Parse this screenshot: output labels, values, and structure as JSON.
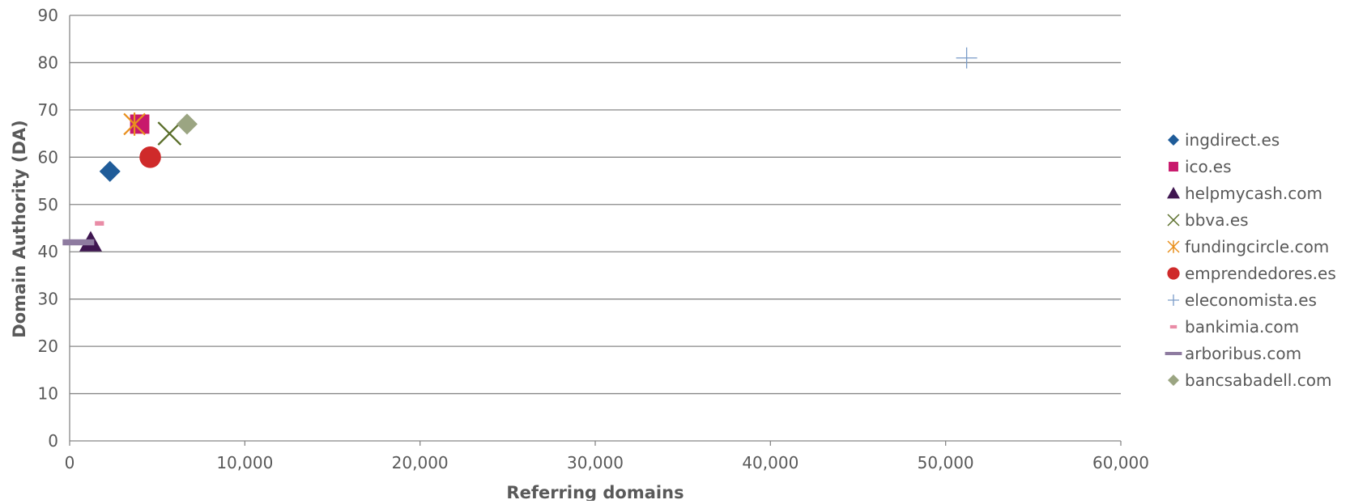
{
  "chart_data": {
    "type": "scatter",
    "title": "",
    "xlabel": "Referring domains",
    "ylabel": "Domain Authority (DA)",
    "xlim": [
      0,
      60000
    ],
    "ylim": [
      0,
      90
    ],
    "x_ticks": [
      0,
      10000,
      20000,
      30000,
      40000,
      50000,
      60000
    ],
    "x_tick_labels": [
      "0",
      "10,000",
      "20,000",
      "30,000",
      "40,000",
      "50,000",
      "60,000"
    ],
    "y_ticks": [
      0,
      10,
      20,
      30,
      40,
      50,
      60,
      70,
      80,
      90
    ],
    "y_tick_labels": [
      "0",
      "10",
      "20",
      "30",
      "40",
      "50",
      "60",
      "70",
      "80",
      "90"
    ],
    "grid": "horizontal",
    "legend_position": "right",
    "series": [
      {
        "name": "ingdirect.es",
        "x": 2300,
        "y": 57,
        "marker": "diamond",
        "color": "#1F5C99"
      },
      {
        "name": "ico.es",
        "x": 4000,
        "y": 67,
        "marker": "square",
        "color": "#C8186C"
      },
      {
        "name": "helpmycash.com",
        "x": 1200,
        "y": 42,
        "marker": "triangle",
        "color": "#3F1651"
      },
      {
        "name": "bbva.es",
        "x": 5700,
        "y": 65,
        "marker": "x",
        "color": "#5A6E2A"
      },
      {
        "name": "fundingcircle.com",
        "x": 3700,
        "y": 67,
        "marker": "star",
        "color": "#E8901E"
      },
      {
        "name": "emprendedores.es",
        "x": 4600,
        "y": 60,
        "marker": "circle",
        "color": "#CF2A2A"
      },
      {
        "name": "eleconomista.es",
        "x": 51200,
        "y": 81,
        "marker": "plus",
        "color": "#7A9CC8"
      },
      {
        "name": "bankimia.com",
        "x": 1700,
        "y": 46,
        "marker": "dash",
        "color": "#E98CA6"
      },
      {
        "name": "arboribus.com",
        "x": 500,
        "y": 42,
        "marker": "bar",
        "color": "#8E7BA0"
      },
      {
        "name": "bancsabadell.com",
        "x": 6700,
        "y": 67,
        "marker": "diamond",
        "color": "#9BA582"
      }
    ]
  }
}
